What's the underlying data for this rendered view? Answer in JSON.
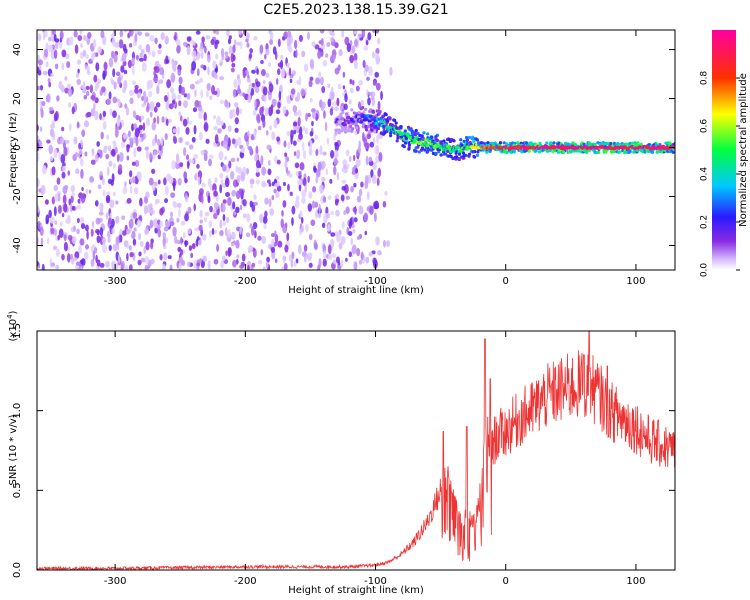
{
  "figure_title": "C2E5.2023.138.15.39.G21",
  "chart_data": [
    {
      "type": "heatmap",
      "xlabel": "Height of straight line (km)",
      "ylabel": "Frequency (Hz)",
      "xlim": [
        -360,
        130
      ],
      "ylim": [
        -50,
        48
      ],
      "xticks": [
        -300,
        -200,
        -100,
        0,
        100
      ],
      "xtick_labels": [
        "-300",
        "-200",
        "-100",
        "0",
        "100"
      ],
      "yticks": [
        -40,
        -20,
        0,
        20,
        40
      ],
      "ytick_labels": [
        "-40",
        "-20",
        "0",
        "20",
        "40"
      ],
      "colorbar": {
        "label": "Normalized spectral amplitude",
        "range": [
          0,
          1
        ],
        "ticks": [
          0.0,
          0.2,
          0.4,
          0.6,
          0.8
        ],
        "tick_labels": [
          "0.0",
          "0.2",
          "0.4",
          "0.6",
          "0.8"
        ],
        "colormap": "rainbow (purple→blue→cyan→green→yellow→red→magenta)"
      },
      "description_points": {
        "noise_region_x": [
          -360,
          -95
        ],
        "noise_amplitude_typical": 0.1,
        "signal_track": [
          {
            "x": -130,
            "freq": 10,
            "amp": 0.1
          },
          {
            "x": -110,
            "freq": 12,
            "amp": 0.2
          },
          {
            "x": -100,
            "freq": 11,
            "amp": 0.3
          },
          {
            "x": -90,
            "freq": 9,
            "amp": 0.4
          },
          {
            "x": -80,
            "freq": 5,
            "amp": 0.5
          },
          {
            "x": -70,
            "freq": 3,
            "amp": 0.5
          },
          {
            "x": -60,
            "freq": 2,
            "amp": 0.55
          },
          {
            "x": -50,
            "freq": 1,
            "amp": 0.5
          },
          {
            "x": -40,
            "freq": -1,
            "amp": 0.45
          },
          {
            "x": -30,
            "freq": 0,
            "amp": 0.5
          },
          {
            "x": -20,
            "freq": 0,
            "amp": 0.7
          },
          {
            "x": 0,
            "freq": 0,
            "amp": 0.9
          },
          {
            "x": 50,
            "freq": 0,
            "amp": 0.95
          },
          {
            "x": 100,
            "freq": 0,
            "amp": 0.95
          },
          {
            "x": 130,
            "freq": 0,
            "amp": 0.9
          }
        ]
      }
    },
    {
      "type": "line",
      "xlabel": "Height of straight line (km)",
      "ylabel": "SNR (10 * v/v)",
      "y_multiplier_label": "(x10^4)",
      "y_multiplier_base": "(x10",
      "y_multiplier_exp": "4",
      "y_multiplier_close": ")",
      "xlim": [
        -360,
        130
      ],
      "ylim": [
        0,
        1.5
      ],
      "xticks": [
        -300,
        -200,
        -100,
        0,
        100
      ],
      "xtick_labels": [
        "-300",
        "-200",
        "-100",
        "0",
        "100"
      ],
      "yticks": [
        0.0,
        0.5,
        1.0,
        1.5
      ],
      "ytick_labels": [
        "0.0",
        "0.5",
        "1.0",
        "1.5"
      ],
      "series": [
        {
          "color": "#ee3333",
          "x": [
            -360,
            -300,
            -200,
            -150,
            -120,
            -100,
            -90,
            -80,
            -70,
            -60,
            -50,
            -45,
            -40,
            -35,
            -30,
            -25,
            -20,
            -15,
            -10,
            -5,
            0,
            10,
            20,
            30,
            40,
            50,
            60,
            70,
            80,
            90,
            100,
            110,
            120,
            130
          ],
          "y": [
            0.01,
            0.01,
            0.02,
            0.02,
            0.02,
            0.03,
            0.05,
            0.1,
            0.18,
            0.3,
            0.5,
            0.62,
            0.45,
            0.32,
            0.35,
            0.28,
            0.45,
            0.82,
            0.8,
            0.85,
            0.87,
            0.95,
            1.0,
            1.08,
            1.12,
            1.15,
            1.17,
            1.12,
            1.0,
            0.95,
            0.9,
            0.82,
            0.78,
            0.75
          ],
          "peaks": [
            {
              "x": -48,
              "y": 0.87
            },
            {
              "x": -30,
              "y": 0.9
            },
            {
              "x": -16,
              "y": 1.45
            },
            {
              "x": -12,
              "y": 1.2
            },
            {
              "x": 60,
              "y": 1.35
            },
            {
              "x": 64,
              "y": 1.52
            },
            {
              "x": 78,
              "y": 1.28
            }
          ],
          "noise_fraction": 0.12
        }
      ]
    }
  ]
}
